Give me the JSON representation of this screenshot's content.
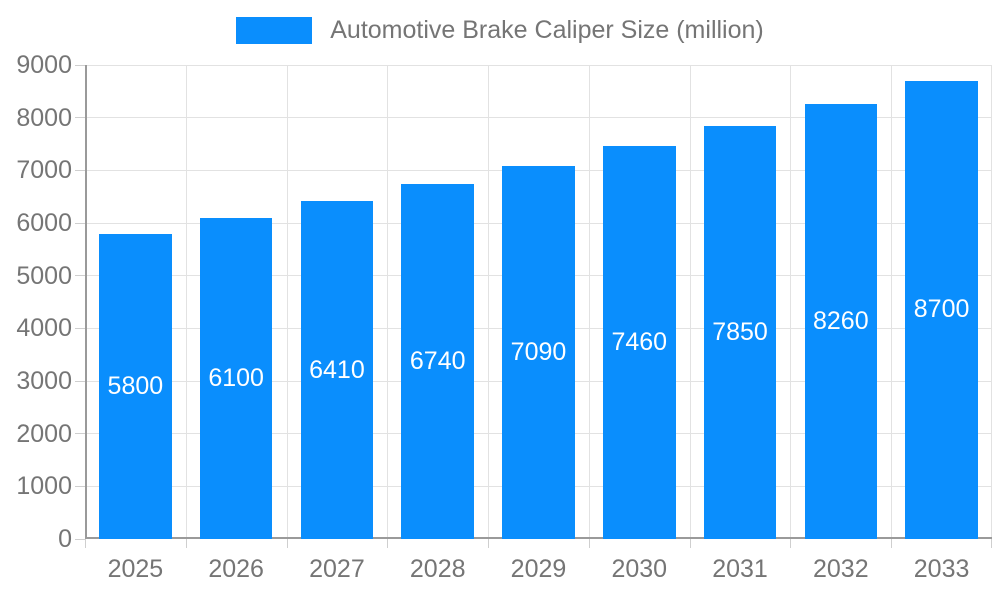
{
  "chart_data": {
    "type": "bar",
    "title": "Automotive Brake Caliper Size (million)",
    "series_name": "Automotive Brake Caliper Size (million)",
    "categories": [
      "2025",
      "2026",
      "2027",
      "2028",
      "2029",
      "2030",
      "2031",
      "2032",
      "2033"
    ],
    "values": [
      5800,
      6100,
      6410,
      6740,
      7090,
      7460,
      7850,
      8260,
      8700
    ],
    "value_labels": [
      "5800",
      "6100",
      "6410",
      "6740",
      "7090",
      "7460",
      "7850",
      "8260",
      "8700"
    ],
    "y_ticks": [
      "0",
      "1000",
      "2000",
      "3000",
      "4000",
      "5000",
      "6000",
      "7000",
      "8000",
      "9000"
    ],
    "ylim": [
      0,
      9000
    ],
    "y_tick_step": 1000,
    "xlabel": "",
    "ylabel": "",
    "grid": true,
    "legend_position": "top",
    "colors": {
      "bar": "#0a8efd",
      "gridline": "#e2e2e2",
      "axis_line": "#9a9a9a",
      "tick_mark": "#cfcfcf",
      "axis_text": "#757575",
      "bar_value_text": "#ffffff",
      "background": "#ffffff"
    }
  }
}
